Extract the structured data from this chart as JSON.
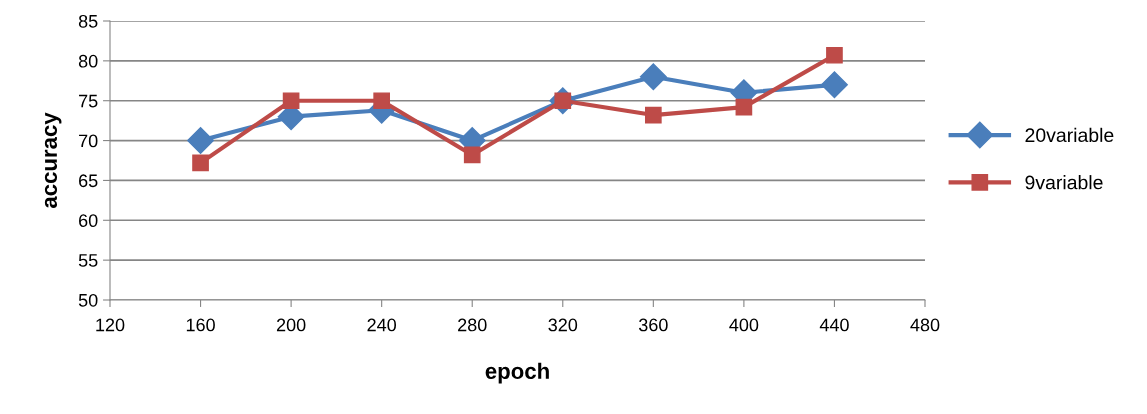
{
  "chart_data": {
    "type": "line",
    "xlabel": "epoch",
    "ylabel": "accuracy",
    "x": [
      160,
      200,
      240,
      280,
      320,
      360,
      400,
      440
    ],
    "series": [
      {
        "name": "20variable",
        "color": "#4a7ebb",
        "marker": "diamond",
        "values": [
          70,
          73,
          73.8,
          70,
          75,
          78,
          76,
          77
        ]
      },
      {
        "name": "9variable",
        "color": "#be4b48",
        "marker": "square",
        "values": [
          67.2,
          75,
          75,
          68.2,
          75,
          73.2,
          74.2,
          80.7
        ]
      }
    ],
    "xlim": [
      120,
      480
    ],
    "xticks": [
      120,
      160,
      200,
      240,
      280,
      320,
      360,
      400,
      440,
      480
    ],
    "ylim": [
      50,
      85
    ],
    "yticks": [
      50,
      55,
      60,
      65,
      70,
      75,
      80,
      85
    ],
    "grid": "y",
    "legend": "right",
    "line_style": "solid"
  }
}
